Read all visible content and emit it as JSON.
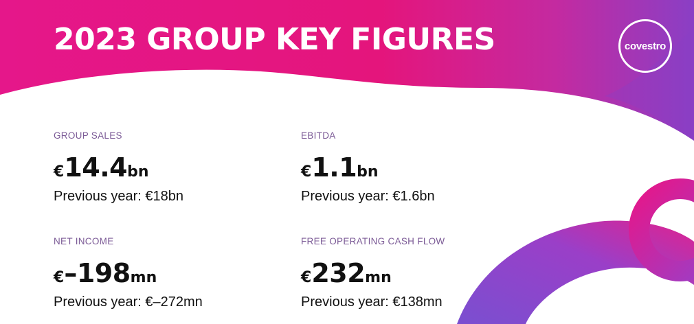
{
  "header": {
    "title": "2023 GROUP KEY FIGURES",
    "logo_text": "covestro"
  },
  "colors": {
    "magenta": "#e5178a",
    "pink": "#e4157c",
    "purple": "#8a3fc5",
    "violet": "#7a4fd0",
    "label": "#7b5a96",
    "text": "#111111"
  },
  "figures": [
    {
      "label": "GROUP SALES",
      "currency": "€",
      "number": "14.4",
      "unit": "bn",
      "previous": "Previous year: €18bn"
    },
    {
      "label": "EBITDA",
      "currency": "€",
      "number": "1.1",
      "unit": "bn",
      "previous": "Previous year: €1.6bn"
    },
    {
      "label": "NET INCOME",
      "currency": "€",
      "number": "–198",
      "unit": "mn",
      "previous": "Previous year: €–272mn"
    },
    {
      "label": "FREE OPERATING CASH FLOW",
      "currency": "€",
      "number": "232",
      "unit": "mn",
      "previous": "Previous year: €138mn"
    }
  ]
}
